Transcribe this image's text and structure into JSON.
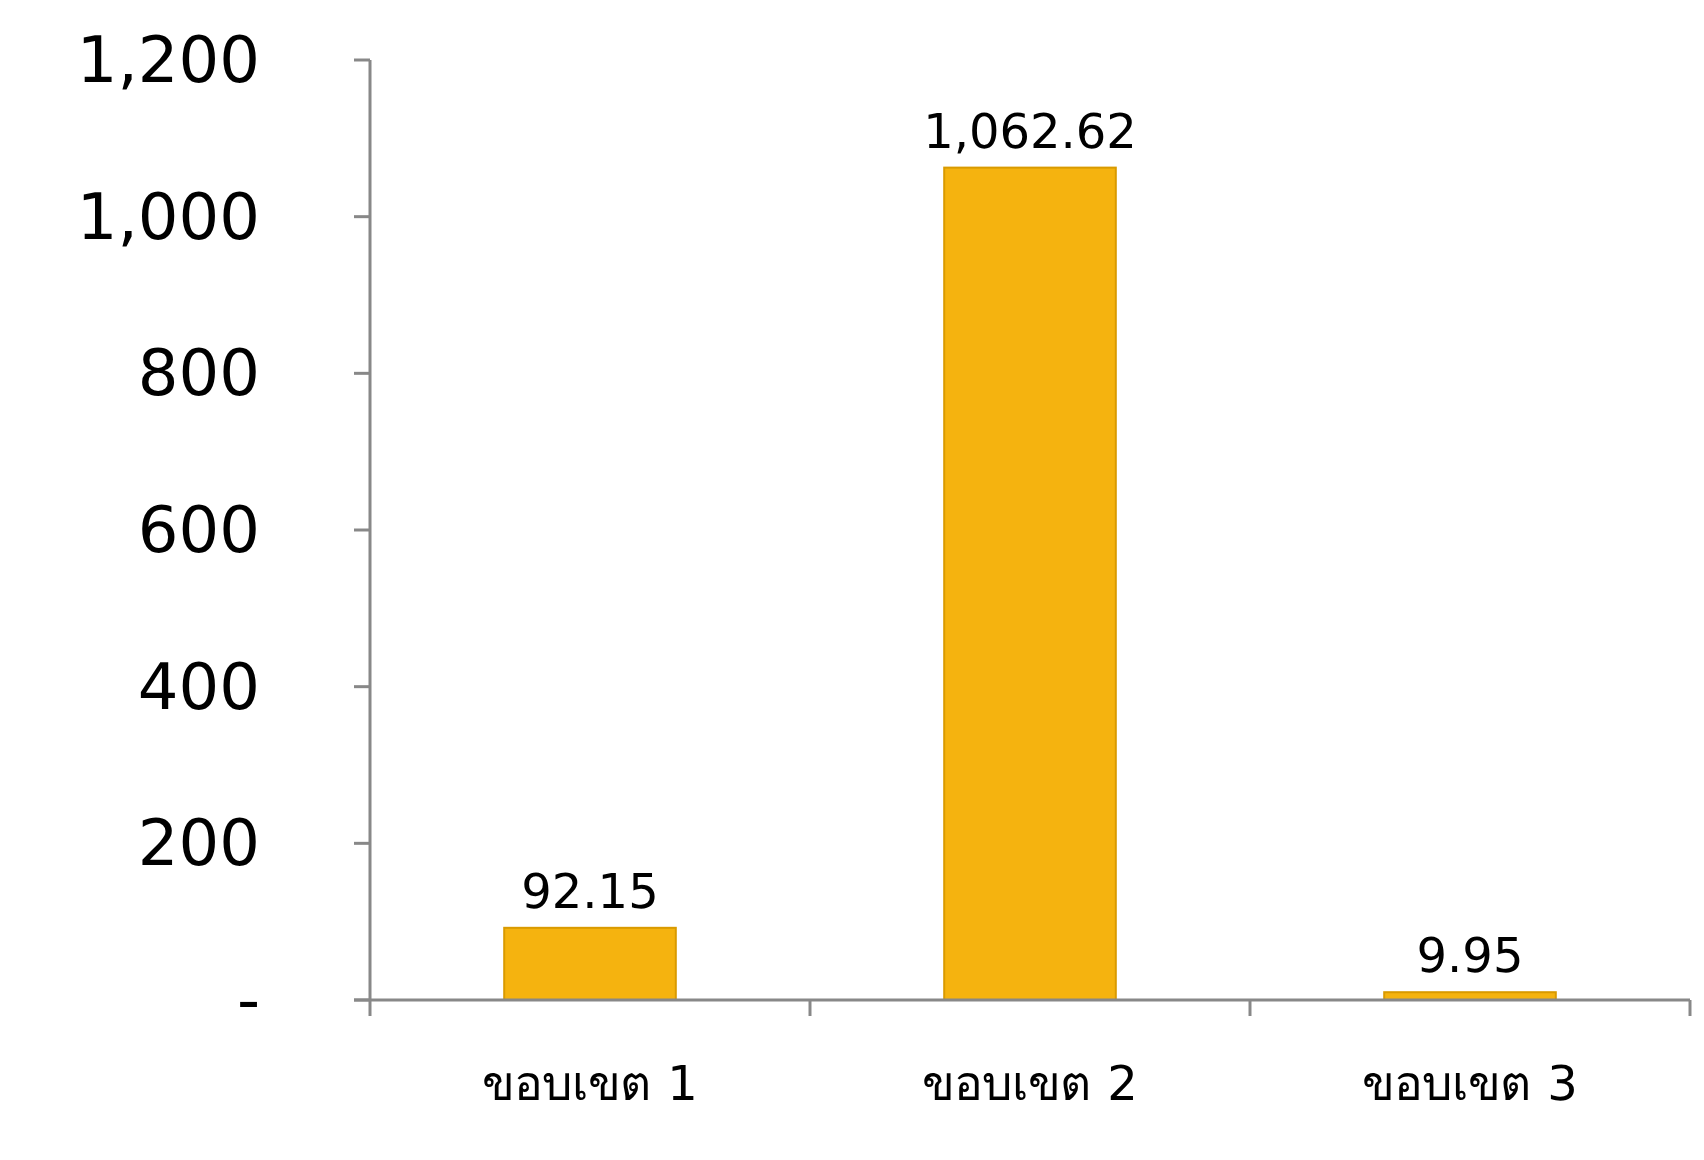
{
  "chart_data": {
    "type": "bar",
    "categories": [
      "ขอบเขต 1",
      "ขอบเขต 2",
      "ขอบเขต 3"
    ],
    "values": [
      92.15,
      1062.62,
      9.95
    ],
    "color": "#f5b30f",
    "value_labels": [
      "92.15",
      "1,062.62",
      "9.95"
    ],
    "ylim": [
      0,
      1200
    ],
    "yticks": [
      {
        "value": 0,
        "label": "-"
      },
      200,
      400,
      600,
      800,
      {
        "value": 1000,
        "label": "1,000"
      },
      {
        "value": 1200,
        "label": "1,200"
      }
    ]
  }
}
